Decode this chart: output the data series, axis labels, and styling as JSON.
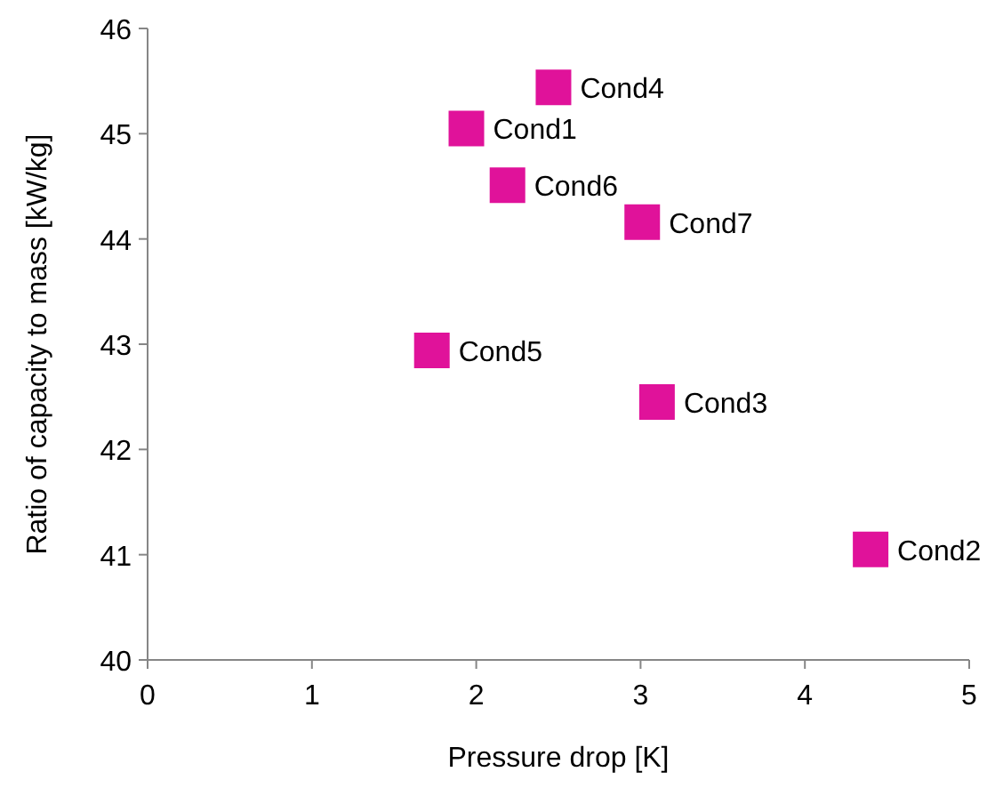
{
  "chart_data": {
    "type": "scatter",
    "xlabel": "Pressure drop [K]",
    "ylabel": "Ratio of capacity to mass [kW/kg]",
    "xlim": [
      0,
      5
    ],
    "xticks": [
      0,
      1,
      2,
      3,
      4,
      5
    ],
    "ylim": [
      40,
      46
    ],
    "yticks": [
      40,
      41,
      42,
      43,
      44,
      45,
      46
    ],
    "grid": false,
    "legend": false,
    "marker": "square",
    "series": [
      {
        "name": "Cond1",
        "color": "#e0129a",
        "x": [
          1.94
        ],
        "values": [
          45.05
        ]
      },
      {
        "name": "Cond2",
        "color": "#e0129a",
        "x": [
          4.4
        ],
        "values": [
          41.05
        ]
      },
      {
        "name": "Cond3",
        "color": "#e0129a",
        "x": [
          3.1
        ],
        "values": [
          42.45
        ]
      },
      {
        "name": "Cond4",
        "color": "#e0129a",
        "x": [
          2.47
        ],
        "values": [
          45.44
        ]
      },
      {
        "name": "Cond5",
        "color": "#e0129a",
        "x": [
          1.73
        ],
        "values": [
          42.94
        ]
      },
      {
        "name": "Cond6",
        "color": "#e0129a",
        "x": [
          2.19
        ],
        "values": [
          44.51
        ]
      },
      {
        "name": "Cond7",
        "color": "#e0129a",
        "x": [
          3.01
        ],
        "values": [
          44.16
        ]
      }
    ]
  }
}
